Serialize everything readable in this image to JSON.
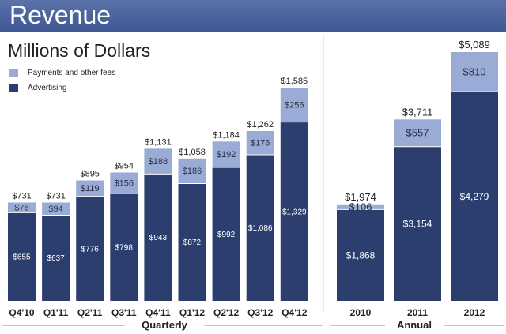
{
  "header": {
    "title": "Revenue"
  },
  "subtitle": "Millions of Dollars",
  "legend": [
    {
      "label": "Payments and other fees",
      "color": "#9aacd6"
    },
    {
      "label": "Advertising",
      "color": "#2c3e6e"
    }
  ],
  "colors": {
    "advertising": "#2c3e6e",
    "payments": "#9aacd6",
    "axis": "#888888"
  },
  "chart_data": [
    {
      "type": "bar",
      "stacked": true,
      "title": "Revenue",
      "subtitle": "Millions of Dollars",
      "xlabel": "Quarterly",
      "ylabel": "Millions of Dollars",
      "ylim": [
        0,
        1700
      ],
      "categories": [
        "Q4'10",
        "Q1'11",
        "Q2'11",
        "Q3'11",
        "Q4'11",
        "Q1'12",
        "Q2'12",
        "Q3'12",
        "Q4'12"
      ],
      "series": [
        {
          "name": "Advertising",
          "values": [
            655,
            637,
            776,
            798,
            943,
            872,
            992,
            1086,
            1329
          ],
          "labels": [
            "$655",
            "$637",
            "$776",
            "$798",
            "$943",
            "$872",
            "$992",
            "$1,086",
            "$1,329"
          ]
        },
        {
          "name": "Payments and other fees",
          "values": [
            76,
            94,
            119,
            156,
            188,
            186,
            192,
            176,
            256
          ],
          "labels": [
            "$76",
            "$94",
            "$119",
            "$156",
            "$188",
            "$186",
            "$192",
            "$176",
            "$256"
          ]
        }
      ],
      "totals": [
        731,
        731,
        895,
        954,
        1131,
        1058,
        1184,
        1262,
        1585
      ],
      "total_labels": [
        "$731",
        "$731",
        "$895",
        "$954",
        "$1,131",
        "$1,058",
        "$1,184",
        "$1,262",
        "$1,585"
      ]
    },
    {
      "type": "bar",
      "stacked": true,
      "xlabel": "Annual",
      "ylim": [
        0,
        5400
      ],
      "categories": [
        "2010",
        "2011",
        "2012"
      ],
      "series": [
        {
          "name": "Advertising",
          "values": [
            1868,
            3154,
            4279
          ],
          "labels": [
            "$1,868",
            "$3,154",
            "$4,279"
          ]
        },
        {
          "name": "Payments and other fees",
          "values": [
            106,
            557,
            810
          ],
          "labels": [
            "$106",
            "$557",
            "$810"
          ]
        }
      ],
      "totals": [
        1974,
        3711,
        5089
      ],
      "total_labels": [
        "$1,974",
        "$3,711",
        "$5,089"
      ]
    }
  ]
}
